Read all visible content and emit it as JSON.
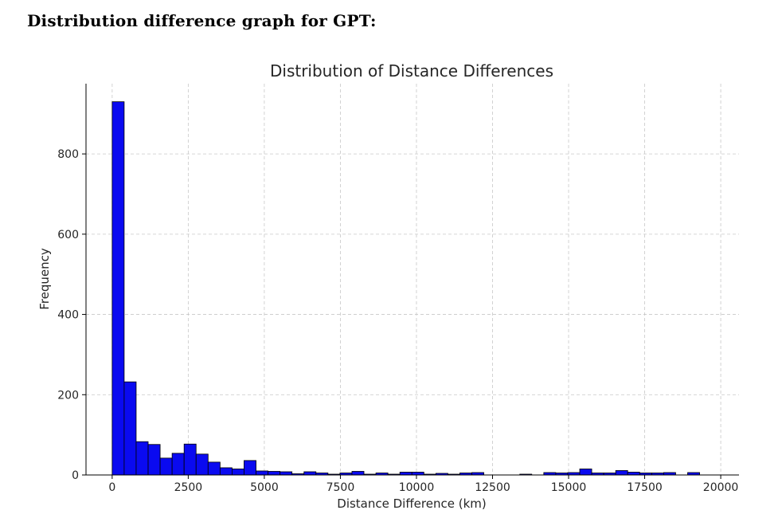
{
  "page": {
    "heading": "Distribution difference graph for GPT:"
  },
  "chart_data": {
    "type": "bar",
    "title": "Distribution of Distance Differences",
    "xlabel": "Distance Difference (km)",
    "ylabel": "Frequency",
    "xlim": [
      -860,
      20600
    ],
    "ylim": [
      0,
      975
    ],
    "xticks": [
      0,
      2500,
      5000,
      7500,
      10000,
      12500,
      15000,
      17500,
      20000
    ],
    "yticks": [
      0,
      200,
      400,
      600,
      800
    ],
    "grid": true,
    "bin_start": 0,
    "bin_width": 394,
    "bar_color": "#0a0af0",
    "values": [
      930,
      232,
      83,
      76,
      42,
      54,
      77,
      52,
      32,
      18,
      15,
      36,
      10,
      9,
      8,
      3,
      8,
      5,
      2,
      5,
      9,
      2,
      5,
      2,
      7,
      7,
      2,
      4,
      2,
      5,
      6,
      0,
      0,
      0,
      2,
      0,
      6,
      5,
      6,
      15,
      5,
      5,
      11,
      7,
      5,
      5,
      6,
      0,
      6
    ]
  }
}
